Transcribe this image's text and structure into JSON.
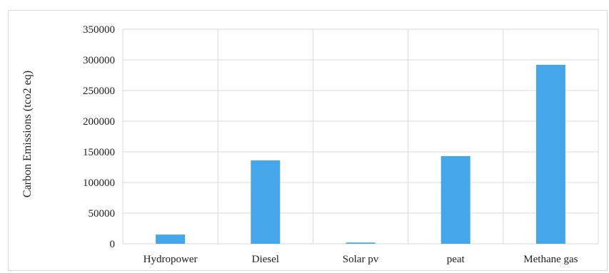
{
  "chart_data": {
    "type": "bar",
    "title": "",
    "categories": [
      "Hydropower",
      "Diesel",
      "Solar pv",
      "peat",
      "Methane gas"
    ],
    "values": [
      15000,
      136000,
      2000,
      143000,
      292000
    ],
    "xlabel": "",
    "ylabel": "Carbon Emissions (tco2 eq)",
    "ylim": [
      0,
      350000
    ],
    "yticks": [
      0,
      50000,
      100000,
      150000,
      200000,
      250000,
      300000,
      350000
    ],
    "grid": true,
    "bar_color": "#45a6e9",
    "grid_color": "#d9d9d9"
  }
}
